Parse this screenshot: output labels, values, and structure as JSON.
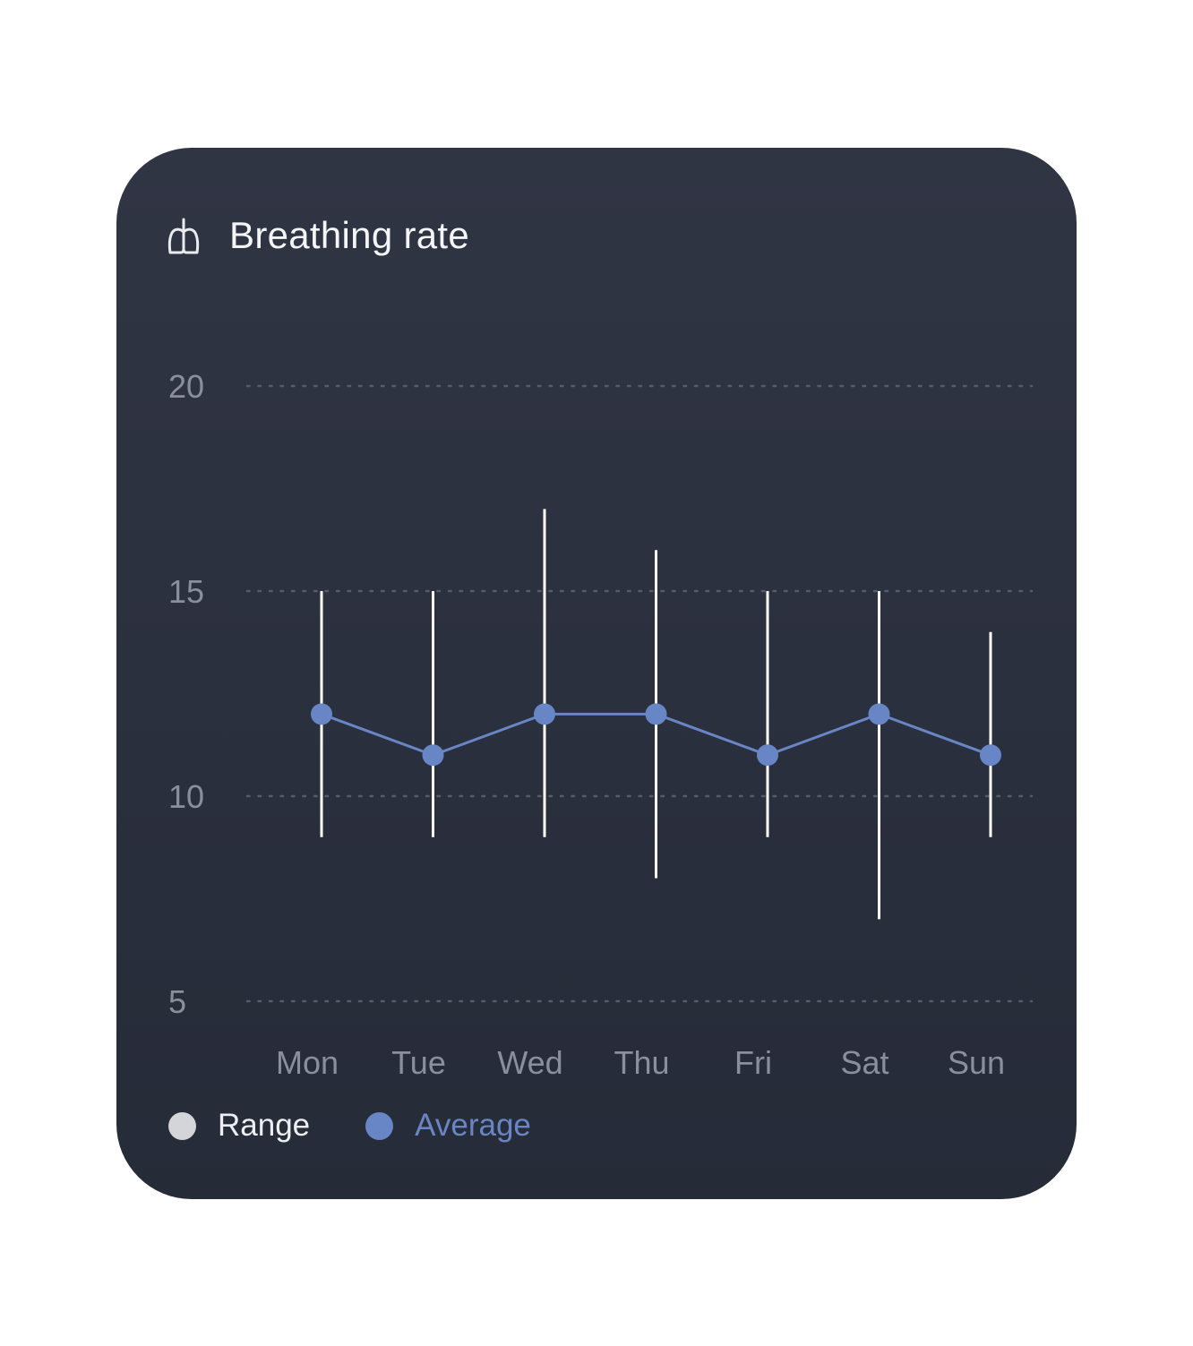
{
  "card": {
    "title": "Breathing rate",
    "title_icon": "lungs-icon"
  },
  "colors": {
    "card_background": "#2c3140",
    "range": "#ffffff",
    "average": "#6886c5",
    "grid": "#565c6b",
    "tick_label": "#8a8f9b",
    "title": "#f4f5f7",
    "legend_range_dot": "#d4d5d9",
    "legend_range_text": "#eceef1",
    "legend_average_text": "#6886c5"
  },
  "chart_data": {
    "type": "line",
    "title": "Breathing rate",
    "xlabel": "",
    "ylabel": "",
    "categories": [
      "Mon",
      "Tue",
      "Wed",
      "Thu",
      "Fri",
      "Sat",
      "Sun"
    ],
    "ylim": [
      5,
      20
    ],
    "yticks": [
      20,
      15,
      10,
      5
    ],
    "grid": true,
    "grid_style": "dotted",
    "series": [
      {
        "name": "Range",
        "kind": "range",
        "low": [
          9,
          9,
          9,
          8,
          9,
          7,
          9
        ],
        "high": [
          15,
          15,
          17,
          16,
          15,
          15,
          14
        ]
      },
      {
        "name": "Average",
        "kind": "line",
        "values": [
          12,
          11,
          12,
          12,
          11,
          12,
          11
        ]
      }
    ],
    "legend": {
      "placement": "bottom-left",
      "items": [
        {
          "label": "Range",
          "series": "Range"
        },
        {
          "label": "Average",
          "series": "Average"
        }
      ]
    }
  }
}
